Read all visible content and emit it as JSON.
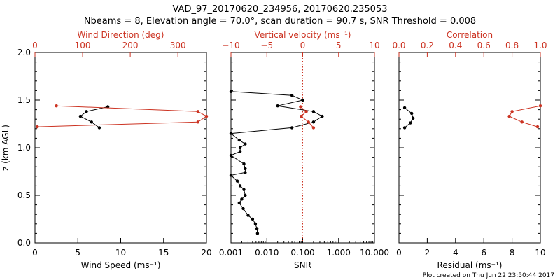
{
  "header": {
    "title": "VAD_97_20170620_234956, 20170620.235053",
    "subtitle": "Nbeams = 8, Elevation angle = 70.0°, scan duration = 90.7 s, SNR Threshold = 0.008"
  },
  "footer": {
    "timestamp": "Plot created on Thu Jun 22 23:50:44 2017"
  },
  "colors": {
    "primary": "#000000",
    "secondary": "#cc3322"
  },
  "chart_data": [
    {
      "id": "wind",
      "type": "line",
      "ylabel": "z (km AGL)",
      "ylim": [
        0,
        2
      ],
      "yticks": [
        0,
        0.5,
        1,
        1.5,
        2
      ],
      "ytick_labels": [
        "0.0",
        "0.5",
        "1.0",
        "1.5",
        "2.0"
      ],
      "bottom_axis": {
        "label": "Wind Speed (ms⁻¹)",
        "range": [
          0,
          20
        ],
        "scale": "linear",
        "ticks": [
          0,
          5,
          10,
          15,
          20
        ],
        "tick_labels": [
          "0",
          "5",
          "10",
          "15",
          "20"
        ]
      },
      "top_axis": {
        "label": "Wind Direction (deg)",
        "range": [
          0,
          360
        ],
        "scale": "linear",
        "ticks": [
          0,
          100,
          200,
          300
        ],
        "tick_labels": [
          "0",
          "100",
          "200",
          "300"
        ]
      },
      "series": [
        {
          "axis": "bottom",
          "color": "primary",
          "points": [
            [
              7.5,
              1.21
            ],
            [
              6.6,
              1.27
            ],
            [
              5.3,
              1.33
            ],
            [
              6.0,
              1.38
            ],
            [
              8.5,
              1.43
            ]
          ]
        },
        {
          "axis": "top",
          "color": "secondary",
          "points": [
            [
              5,
              1.22
            ],
            [
              342,
              1.27
            ],
            [
              360,
              1.33
            ],
            [
              342,
              1.38
            ],
            [
              45,
              1.44
            ]
          ]
        }
      ]
    },
    {
      "id": "snr",
      "type": "line",
      "ylim": [
        0,
        2
      ],
      "bottom_axis": {
        "label": "SNR",
        "range": [
          0.001,
          10
        ],
        "scale": "log",
        "ticks": [
          0.001,
          0.01,
          0.1,
          1,
          10
        ],
        "tick_labels": [
          "0.001",
          "0.010",
          "0.100",
          "1.000",
          "10.000"
        ]
      },
      "top_axis": {
        "label": "Vertical velocity (ms⁻¹)",
        "range": [
          -10,
          10
        ],
        "scale": "linear",
        "ticks": [
          -10,
          -5,
          0,
          5,
          10
        ],
        "tick_labels": [
          "−10",
          "−5",
          "0",
          "5",
          "10"
        ]
      },
      "reference_line": {
        "axis": "top",
        "value": 0
      },
      "series": [
        {
          "axis": "bottom",
          "color": "primary",
          "points": [
            [
              0.001,
              1.59
            ],
            [
              0.05,
              1.55
            ],
            [
              0.1,
              1.5
            ],
            [
              0.02,
              1.44
            ],
            [
              0.2,
              1.38
            ],
            [
              0.35,
              1.33
            ],
            [
              0.2,
              1.27
            ],
            [
              0.05,
              1.21
            ],
            [
              0.001,
              1.15
            ],
            [
              0.0017,
              1.08
            ],
            [
              0.0025,
              1.04
            ],
            [
              0.0018,
              1.0
            ],
            [
              0.0018,
              0.96
            ],
            [
              0.001,
              0.92
            ],
            [
              0.0023,
              0.83
            ],
            [
              0.0025,
              0.78
            ],
            [
              0.0025,
              0.74
            ],
            [
              0.001,
              0.71
            ],
            [
              0.0015,
              0.65
            ],
            [
              0.0018,
              0.6
            ],
            [
              0.0023,
              0.56
            ],
            [
              0.0025,
              0.5
            ],
            [
              0.002,
              0.46
            ],
            [
              0.0017,
              0.42
            ],
            [
              0.0022,
              0.36
            ],
            [
              0.003,
              0.29
            ],
            [
              0.004,
              0.25
            ],
            [
              0.0048,
              0.2
            ],
            [
              0.0053,
              0.15
            ],
            [
              0.0055,
              0.1
            ]
          ]
        },
        {
          "axis": "top",
          "color": "secondary",
          "points": [
            [
              1.5,
              1.21
            ],
            [
              0.8,
              1.27
            ],
            [
              -0.2,
              1.33
            ],
            [
              0.5,
              1.38
            ],
            [
              -0.3,
              1.43
            ]
          ]
        }
      ]
    },
    {
      "id": "corr",
      "type": "line",
      "ylim": [
        0,
        2
      ],
      "bottom_axis": {
        "label": "Residual (ms⁻¹)",
        "range": [
          0,
          10
        ],
        "scale": "linear",
        "ticks": [
          0,
          2,
          4,
          6,
          8,
          10
        ],
        "tick_labels": [
          "0",
          "2",
          "4",
          "6",
          "8",
          "10"
        ]
      },
      "top_axis": {
        "label": "Correlation",
        "range": [
          0,
          1
        ],
        "scale": "linear",
        "ticks": [
          0,
          0.2,
          0.4,
          0.6,
          0.8,
          1.0
        ],
        "tick_labels": [
          "0.0",
          "0.2",
          "0.4",
          "0.6",
          "0.8",
          "1.0"
        ]
      },
      "series": [
        {
          "axis": "bottom",
          "color": "primary",
          "points": [
            [
              0.4,
              1.21
            ],
            [
              0.8,
              1.26
            ],
            [
              1.0,
              1.31
            ],
            [
              0.9,
              1.36
            ],
            [
              0.4,
              1.42
            ]
          ]
        },
        {
          "axis": "top",
          "color": "secondary",
          "points": [
            [
              0.98,
              1.22
            ],
            [
              0.87,
              1.27
            ],
            [
              0.78,
              1.33
            ],
            [
              0.8,
              1.38
            ],
            [
              1.0,
              1.44
            ]
          ]
        }
      ]
    }
  ]
}
